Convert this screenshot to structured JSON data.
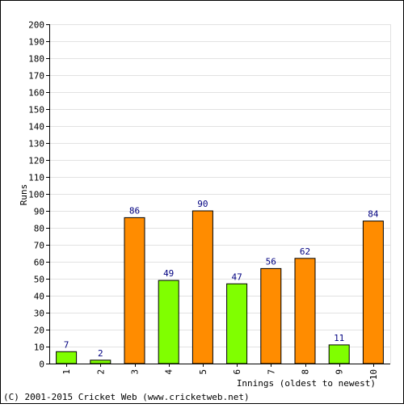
{
  "chart_data": {
    "type": "bar",
    "categories": [
      "1",
      "2",
      "3",
      "4",
      "5",
      "6",
      "7",
      "8",
      "9",
      "10"
    ],
    "values": [
      7,
      2,
      86,
      49,
      90,
      47,
      56,
      62,
      11,
      84
    ],
    "bar_colors": [
      "#80ff00",
      "#80ff00",
      "#ff8c00",
      "#80ff00",
      "#ff8c00",
      "#80ff00",
      "#ff8c00",
      "#ff8c00",
      "#80ff00",
      "#ff8c00"
    ],
    "xlabel": "Innings (oldest to newest)",
    "ylabel": "Runs",
    "ylim": [
      0,
      200
    ],
    "ytick_step": 10,
    "grid": true,
    "label_color": "#000080",
    "border_color": "#000000"
  },
  "footer": {
    "copyright": "(C) 2001-2015 Cricket Web (www.cricketweb.net)"
  }
}
